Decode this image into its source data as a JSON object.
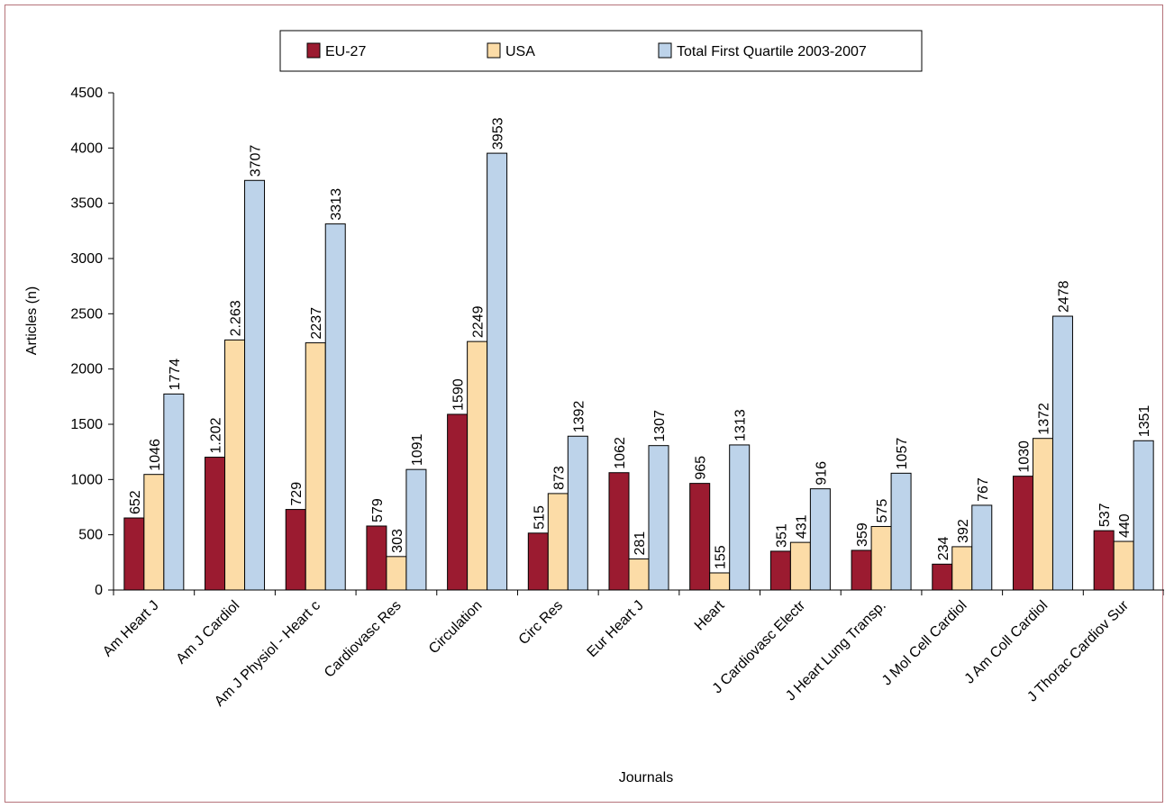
{
  "chart_data": {
    "type": "bar",
    "title": "",
    "xlabel": "Journals",
    "ylabel": "Articles (n)",
    "ylim": [
      0,
      4500
    ],
    "yticks": [
      0,
      500,
      1000,
      1500,
      2000,
      2500,
      3000,
      3500,
      4000,
      4500
    ],
    "grid": false,
    "legend_position": "top-center",
    "categories": [
      "Am Heart J",
      "Am J Cardiol",
      "Am J Physiol - Heart c",
      "Cardiovasc Res",
      "Circulation",
      "Circ Res",
      "Eur Heart J",
      "Heart",
      "J Cardiovasc Electr",
      "J Heart Lung Transp.",
      "J Mol Cell Cardiol",
      "J Am Coll Cardiol",
      "J Thorac Cardiov Sur"
    ],
    "series": [
      {
        "name": "EU-27",
        "color": "#9b1b30",
        "values": [
          652,
          1202,
          729,
          579,
          1590,
          515,
          1062,
          965,
          351,
          359,
          234,
          1030,
          537
        ],
        "labels": [
          "652",
          "1.202",
          "729",
          "579",
          "1590",
          "515",
          "1062",
          "965",
          "351",
          "359",
          "234",
          "1030",
          "537"
        ]
      },
      {
        "name": "USA",
        "color": "#fcdca7",
        "values": [
          1046,
          2263,
          2237,
          303,
          2249,
          873,
          281,
          155,
          431,
          575,
          392,
          1372,
          440
        ],
        "labels": [
          "1046",
          "2.263",
          "2237",
          "303",
          "2249",
          "873",
          "281",
          "155",
          "431",
          "575",
          "392",
          "1372",
          "440"
        ]
      },
      {
        "name": "Total First Quartile 2003-2007",
        "color": "#bdd3ea",
        "values": [
          1774,
          3707,
          3313,
          1091,
          3953,
          1392,
          1307,
          1313,
          916,
          1057,
          767,
          2478,
          1351
        ],
        "labels": [
          "1774",
          "3707",
          "3313",
          "1091",
          "3953",
          "1392",
          "1307",
          "1313",
          "916",
          "1057",
          "767",
          "2478",
          "1351"
        ]
      }
    ]
  }
}
